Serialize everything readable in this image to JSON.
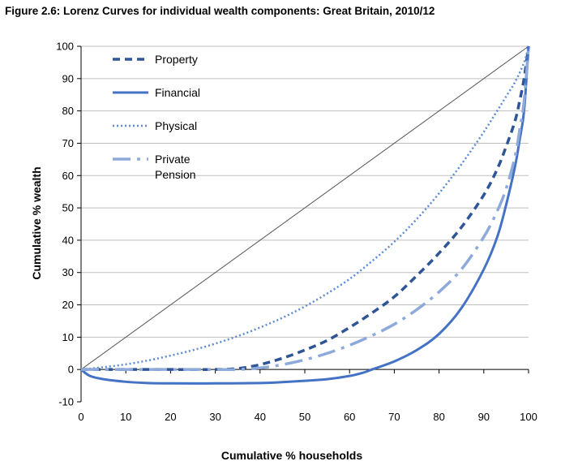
{
  "chart_data": {
    "type": "line",
    "title": "Figure 2.6: Lorenz Curves for individual wealth components: Great Britain, 2010/12",
    "xlabel": "Cumulative % households",
    "ylabel": "Cumulative % wealth",
    "xlim": [
      0,
      100
    ],
    "ylim": [
      -10,
      100
    ],
    "xticks": [
      0,
      10,
      20,
      30,
      40,
      50,
      60,
      70,
      80,
      90,
      100
    ],
    "yticks": [
      -10,
      0,
      10,
      20,
      30,
      40,
      50,
      60,
      70,
      80,
      90,
      100
    ],
    "grid": true,
    "legend_position": "top-left",
    "equality_line": {
      "x": [
        0,
        100
      ],
      "y": [
        0,
        100
      ],
      "color": "#555555"
    },
    "series": [
      {
        "name": "Property",
        "style": "dashed",
        "color": "#2f5597",
        "x": [
          0,
          10,
          20,
          30,
          35,
          40,
          45,
          50,
          55,
          60,
          65,
          70,
          75,
          80,
          85,
          90,
          93,
          95,
          97,
          98,
          99,
          100
        ],
        "y": [
          0,
          0,
          0,
          0,
          0.3,
          1.5,
          3.5,
          6,
          9,
          13,
          17.5,
          22.5,
          29,
          36,
          44,
          54,
          62,
          69,
          77,
          83,
          90,
          100
        ]
      },
      {
        "name": "Financial",
        "style": "solid",
        "color": "#4472c4",
        "x": [
          0,
          2,
          5,
          10,
          15,
          20,
          30,
          40,
          45,
          50,
          55,
          60,
          63,
          65,
          70,
          75,
          80,
          85,
          90,
          93,
          95,
          97,
          98,
          99,
          100
        ],
        "y": [
          0,
          -2,
          -3,
          -3.8,
          -4.2,
          -4.3,
          -4.3,
          -4.2,
          -3.9,
          -3.5,
          -3,
          -2,
          -1,
          0,
          2.5,
          6,
          11,
          19,
          31,
          41,
          51,
          63,
          71,
          80,
          100
        ]
      },
      {
        "name": "Physical",
        "style": "dotted",
        "color": "#5b8bd0",
        "x": [
          0,
          5,
          10,
          15,
          20,
          25,
          30,
          35,
          40,
          45,
          50,
          55,
          60,
          65,
          70,
          75,
          80,
          85,
          90,
          95,
          97,
          99,
          100
        ],
        "y": [
          0,
          0.7,
          1.6,
          2.8,
          4.3,
          6,
          8,
          10.3,
          13,
          16,
          19.5,
          23.5,
          28,
          33.5,
          39.5,
          46.5,
          54.5,
          63.5,
          73.5,
          84.5,
          89,
          95,
          100
        ]
      },
      {
        "name": "Private\nPension",
        "style": "dashdot",
        "color": "#8eaadb",
        "x": [
          0,
          10,
          20,
          30,
          35,
          40,
          45,
          50,
          55,
          60,
          65,
          70,
          75,
          80,
          85,
          90,
          93,
          95,
          97,
          98,
          99,
          100
        ],
        "y": [
          0,
          0,
          0,
          0,
          0,
          0.5,
          1.5,
          3,
          5,
          7.5,
          10.5,
          14,
          18.5,
          24,
          31,
          41,
          49,
          56,
          66,
          74,
          83,
          100
        ]
      }
    ]
  }
}
